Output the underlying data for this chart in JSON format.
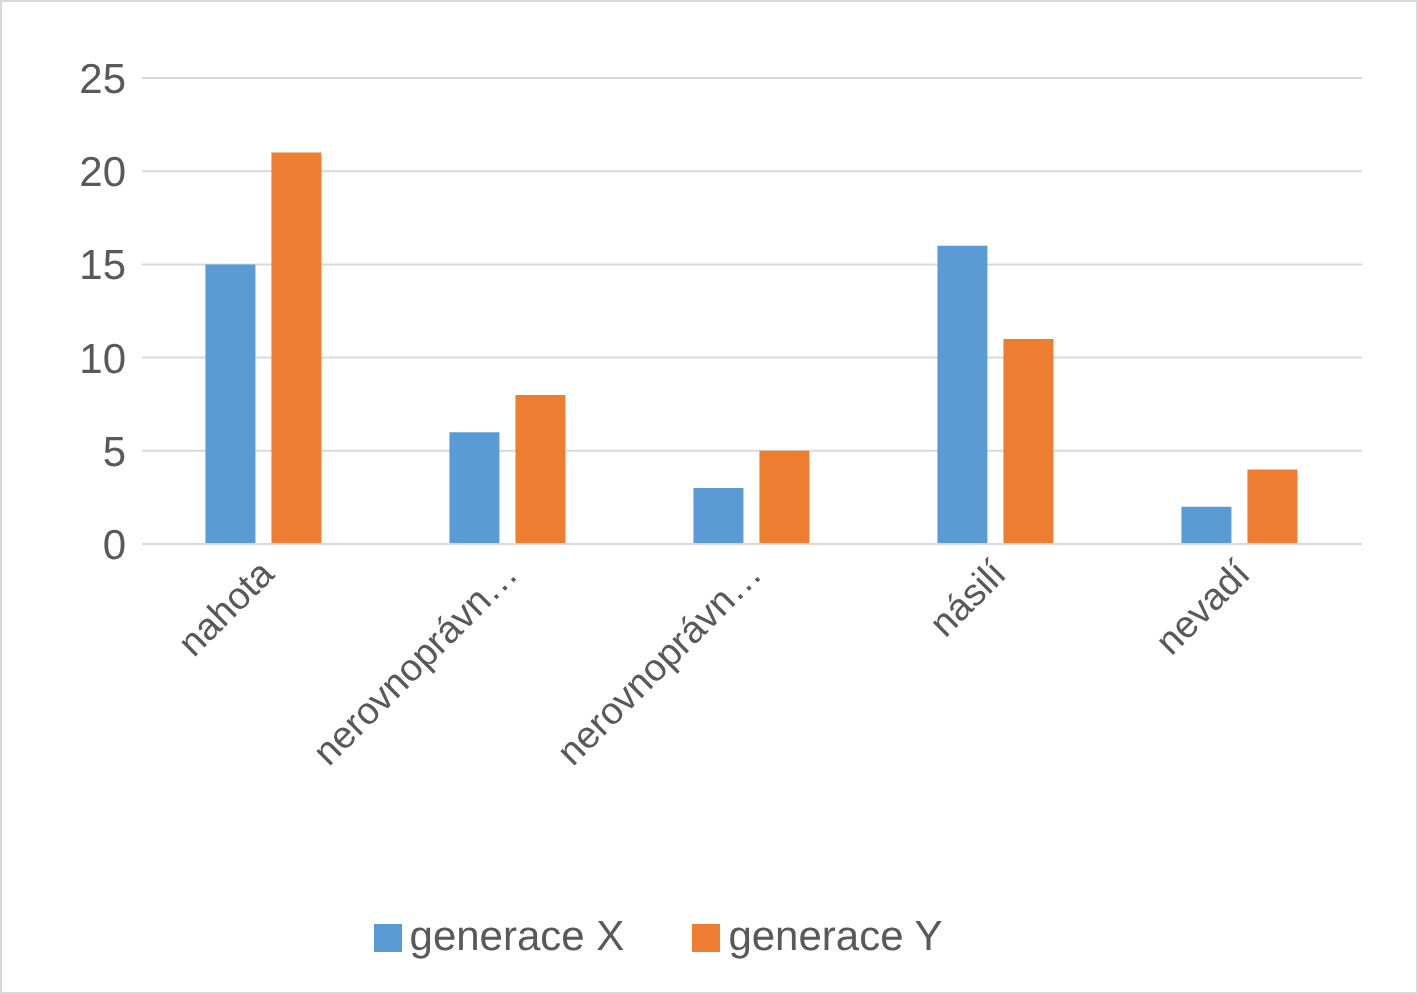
{
  "chart_data": {
    "type": "bar",
    "categories": [
      "nahota",
      "nerovnoprávn…",
      "nerovnoprávn…",
      "násilí",
      "nevadí"
    ],
    "series": [
      {
        "name": "generace X",
        "color": "#5b9bd5",
        "values": [
          15,
          6,
          3,
          16,
          2
        ]
      },
      {
        "name": "generace Y",
        "color": "#ed7d31",
        "values": [
          21,
          8,
          5,
          11,
          4
        ]
      }
    ],
    "ylim": [
      0,
      25
    ],
    "yticks": [
      0,
      5,
      10,
      15,
      20,
      25
    ],
    "grid": "y",
    "legend": "bottom"
  }
}
